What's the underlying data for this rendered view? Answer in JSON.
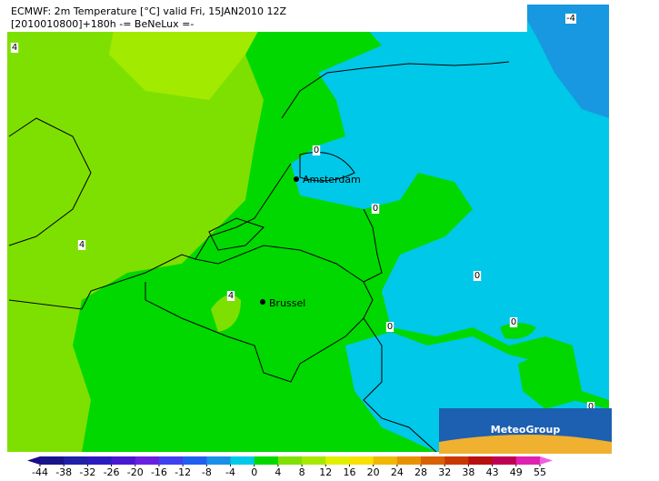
{
  "header": {
    "title": "ECMWF: 2m Temperature [°C] valid Fri, 15JAN2010 12Z",
    "subtitle": "[2010010800]+180h -= BeNeLux =-"
  },
  "cities": [
    "Amsterdam",
    "Brussel"
  ],
  "contour_labels": [
    "4",
    "0",
    "0",
    "4",
    "4",
    "0",
    "0",
    "0",
    "-4",
    "0"
  ],
  "logo": "MeteoGroup",
  "colorbar": {
    "ticks": [
      -44,
      -38,
      -32,
      -26,
      -20,
      -16,
      -12,
      -8,
      -4,
      0,
      4,
      8,
      12,
      16,
      20,
      24,
      28,
      32,
      38,
      43,
      49,
      55
    ],
    "colors": [
      "#1a0a8c",
      "#18148c",
      "#2020a8",
      "#2c1cc0",
      "#4a18d0",
      "#6a20e0",
      "#4040f0",
      "#2060f0",
      "#1890e8",
      "#00c8e8",
      "#00d800",
      "#80e000",
      "#a8e800",
      "#e0f000",
      "#f8e000",
      "#f0b800",
      "#e89000",
      "#d86000",
      "#c83800",
      "#b81010",
      "#c00050",
      "#e020b0",
      "#f060e0"
    ]
  }
}
